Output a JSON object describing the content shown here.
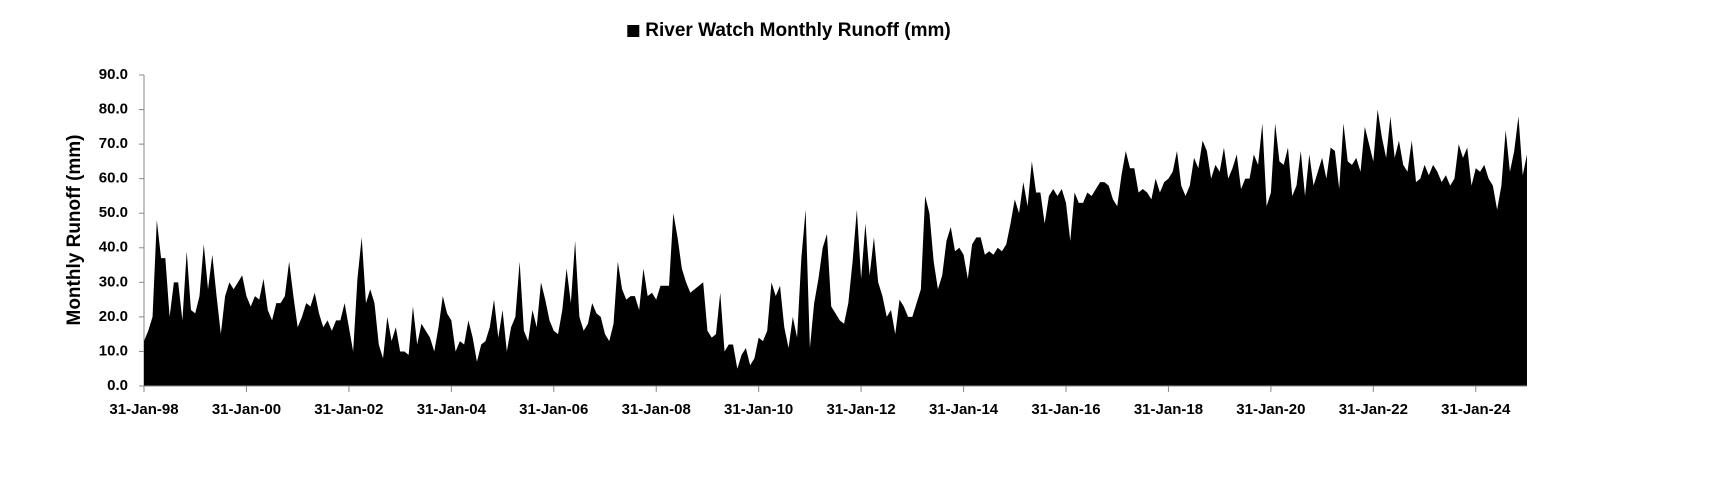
{
  "chart_data": {
    "type": "area",
    "y_label": "Monthly Runoff (mm)",
    "categories": [
      "31-Jan-98",
      null,
      null,
      null,
      null,
      null,
      null,
      null,
      null,
      null,
      null,
      null,
      null,
      null,
      null,
      null,
      null,
      null,
      null,
      null,
      null,
      null,
      null,
      null,
      "31-Jan-00",
      null,
      null,
      null,
      null,
      null,
      null,
      null,
      null,
      null,
      null,
      null,
      null,
      null,
      null,
      null,
      null,
      null,
      null,
      null,
      null,
      null,
      null,
      null,
      "31-Jan-02",
      null,
      null,
      null,
      null,
      null,
      null,
      null,
      null,
      null,
      null,
      null,
      null,
      null,
      null,
      null,
      null,
      null,
      null,
      null,
      null,
      null,
      null,
      null,
      "31-Jan-04",
      null,
      null,
      null,
      null,
      null,
      null,
      null,
      null,
      null,
      null,
      null,
      null,
      null,
      null,
      null,
      null,
      null,
      null,
      null,
      null,
      null,
      null,
      null,
      "31-Jan-06",
      null,
      null,
      null,
      null,
      null,
      null,
      null,
      null,
      null,
      null,
      null,
      null,
      null,
      null,
      null,
      null,
      null,
      null,
      null,
      null,
      null,
      null,
      null,
      "31-Jan-08",
      null,
      null,
      null,
      null,
      null,
      null,
      null,
      null,
      null,
      null,
      null,
      null,
      null,
      null,
      null,
      null,
      null,
      null,
      null,
      null,
      null,
      null,
      null,
      "31-Jan-10",
      null,
      null,
      null,
      null,
      null,
      null,
      null,
      null,
      null,
      null,
      null,
      null,
      null,
      null,
      null,
      null,
      null,
      null,
      null,
      null,
      null,
      null,
      null,
      "31-Jan-12",
      null,
      null,
      null,
      null,
      null,
      null,
      null,
      null,
      null,
      null,
      null,
      null,
      null,
      null,
      null,
      null,
      null,
      null,
      null,
      null,
      null,
      null,
      null,
      "31-Jan-14",
      null,
      null,
      null,
      null,
      null,
      null,
      null,
      null,
      null,
      null,
      null,
      null,
      null,
      null,
      null,
      null,
      null,
      null,
      null,
      null,
      null,
      null,
      null,
      "31-Jan-16",
      null,
      null,
      null,
      null,
      null,
      null,
      null,
      null,
      null,
      null,
      null,
      null,
      null,
      null,
      null,
      null,
      null,
      null,
      null,
      null,
      null,
      null,
      null,
      "31-Jan-18",
      null,
      null,
      null,
      null,
      null,
      null,
      null,
      null,
      null,
      null,
      null,
      null,
      null,
      null,
      null,
      null,
      null,
      null,
      null,
      null,
      null,
      null,
      null,
      "31-Jan-20",
      null,
      null,
      null,
      null,
      null,
      null,
      null,
      null,
      null,
      null,
      null,
      null,
      null,
      null,
      null,
      null,
      null,
      null,
      null,
      null,
      null,
      null,
      null,
      "31-Jan-22",
      null,
      null,
      null,
      null,
      null,
      null,
      null,
      null,
      null,
      null,
      null,
      null,
      null,
      null,
      null,
      null,
      null,
      null,
      null,
      null,
      null,
      null,
      null,
      "31-Jan-24",
      null,
      null,
      null,
      null,
      null,
      null,
      null,
      null,
      null,
      null,
      null,
      null
    ],
    "series": [
      {
        "name": "River Watch Monthly Runoff (mm)",
        "color": "#000000",
        "values": [
          13,
          16,
          20,
          48,
          37,
          37,
          20,
          30,
          30,
          19,
          39,
          22,
          21,
          26,
          41,
          28,
          38,
          26,
          15,
          26,
          30,
          28,
          30,
          32,
          26,
          23,
          26,
          25,
          31,
          22,
          19,
          24,
          24,
          26,
          36,
          26,
          17,
          20,
          24,
          23,
          27,
          21,
          17,
          19,
          16,
          19,
          19,
          24,
          17,
          10,
          31,
          43,
          24,
          28,
          24,
          12,
          8,
          20,
          13,
          17,
          10,
          10,
          9,
          23,
          12,
          18,
          16,
          14,
          10,
          17,
          26,
          21,
          19,
          10,
          13,
          12,
          19,
          14,
          7,
          12,
          13,
          17,
          25,
          14,
          22,
          10,
          17,
          20,
          36,
          16,
          13,
          22,
          17,
          30,
          25,
          19,
          16,
          15,
          22,
          34,
          24,
          42,
          20,
          16,
          18,
          24,
          21,
          20,
          15,
          13,
          18,
          36,
          28,
          25,
          26,
          26,
          22,
          34,
          26,
          27,
          25,
          29,
          29,
          29,
          50,
          43,
          34,
          30,
          27,
          28,
          29,
          30,
          16,
          14,
          15,
          27,
          10,
          12,
          12,
          5,
          9,
          11,
          6,
          8,
          14,
          13,
          16,
          30,
          26,
          29,
          17,
          11,
          20,
          14,
          37,
          51,
          11,
          24,
          31,
          40,
          44,
          23,
          21,
          19,
          18,
          24,
          36,
          51,
          31,
          47,
          32,
          43,
          30,
          26,
          20,
          22,
          15,
          25,
          23,
          20,
          20,
          24,
          28,
          55,
          50,
          36,
          28,
          32,
          42,
          46,
          39,
          40,
          38,
          31,
          41,
          43,
          43,
          38,
          39,
          38,
          40,
          39,
          41,
          47,
          54,
          50,
          59,
          52,
          65,
          56,
          56,
          47,
          55,
          57,
          55,
          57,
          53,
          42,
          56,
          53,
          53,
          56,
          55,
          57,
          59,
          59,
          58,
          54,
          52,
          61,
          68,
          63,
          63,
          56,
          57,
          56,
          54,
          60,
          56,
          59,
          60,
          62,
          68,
          58,
          55,
          58,
          66,
          63,
          71,
          68,
          60,
          64,
          62,
          69,
          60,
          63,
          67,
          57,
          60,
          60,
          67,
          64,
          76,
          52,
          56,
          76,
          65,
          64,
          69,
          55,
          58,
          68,
          55,
          67,
          58,
          62,
          66,
          60,
          69,
          68,
          57,
          76,
          65,
          64,
          66,
          62,
          75,
          70,
          65,
          80,
          72,
          66,
          78,
          66,
          71,
          64,
          62,
          71,
          59,
          60,
          64,
          61,
          64,
          62,
          59,
          61,
          58,
          60,
          70,
          66,
          69,
          58,
          63,
          62,
          64,
          60,
          58,
          51,
          58,
          74,
          62,
          68,
          78,
          61,
          67
        ]
      }
    ],
    "ylim": [
      0,
      90
    ],
    "yticks": [
      {
        "value": 0,
        "label": "0.0"
      },
      {
        "value": 10,
        "label": "10.0"
      },
      {
        "value": 20,
        "label": "20.0"
      },
      {
        "value": 30,
        "label": "30.0"
      },
      {
        "value": 40,
        "label": "40.0"
      },
      {
        "value": 50,
        "label": "50.0"
      },
      {
        "value": 60,
        "label": "60.0"
      },
      {
        "value": 70,
        "label": "70.0"
      },
      {
        "value": 80,
        "label": "80.0"
      },
      {
        "value": 90,
        "label": "90.0"
      }
    ],
    "legend": "top",
    "grid": false
  }
}
